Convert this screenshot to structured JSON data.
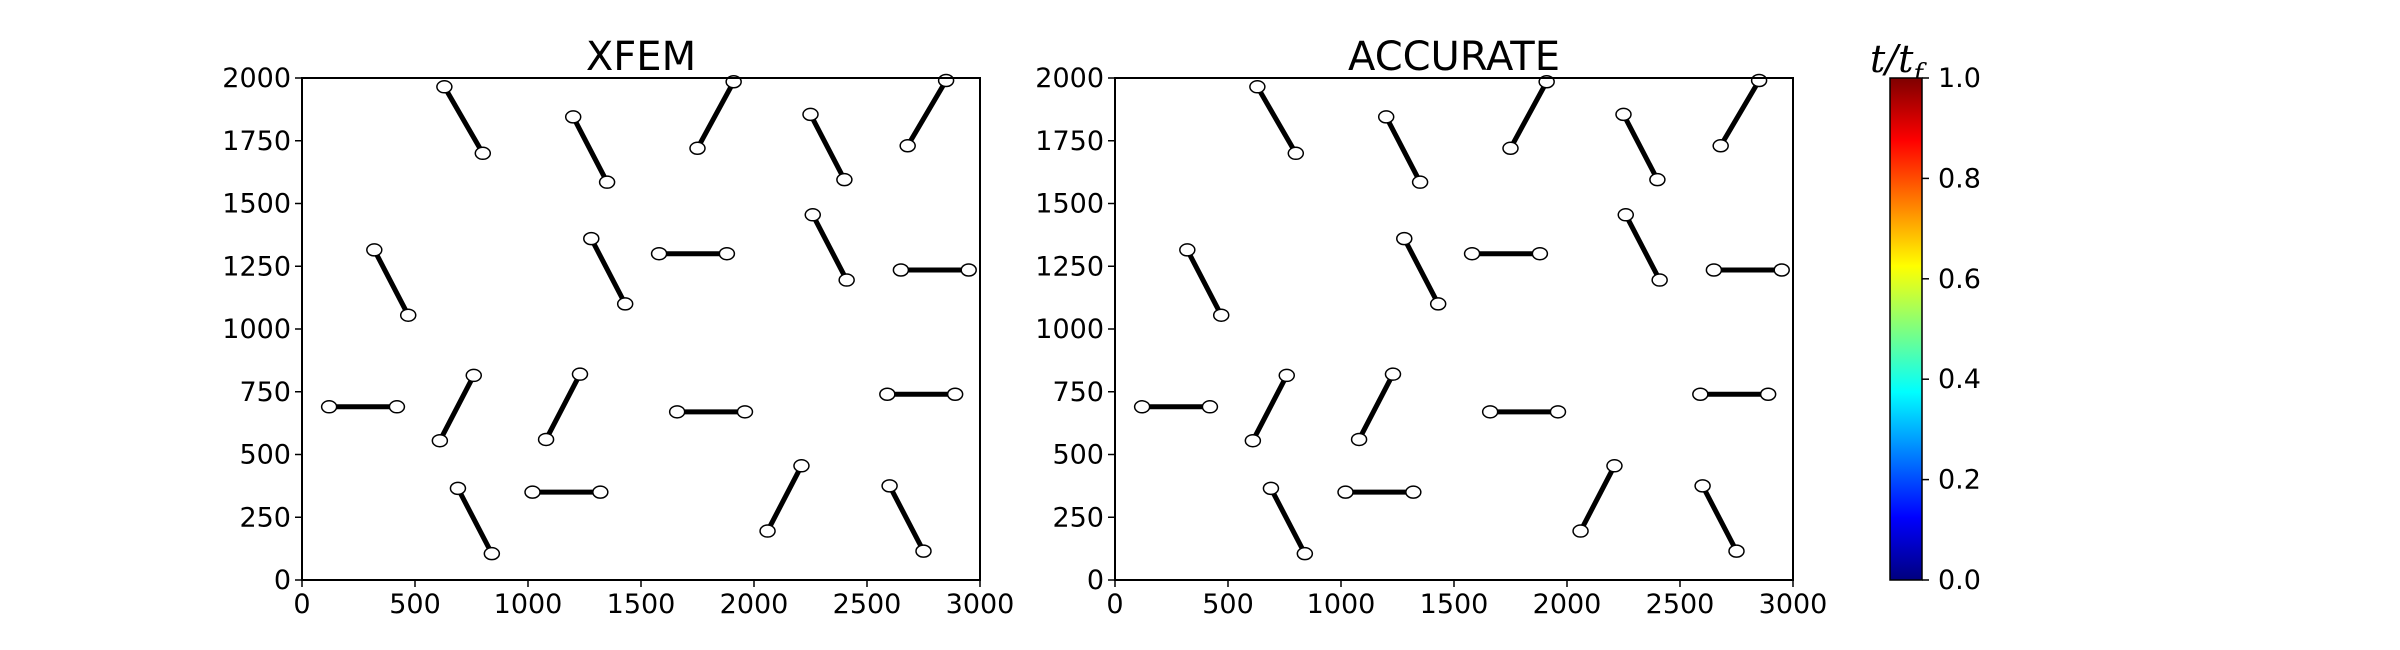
{
  "colors": {
    "segment": "#000000",
    "node_fill": "#ffffff",
    "node_stroke": "#000000",
    "colormap": [
      "#00007f",
      "#0000ff",
      "#007fff",
      "#00ffff",
      "#7fff7f",
      "#ffff00",
      "#ff7f00",
      "#ff0000",
      "#7f0000"
    ]
  },
  "chart_data": [
    {
      "type": "scatter",
      "title": "XFEM",
      "xlim": [
        0,
        3000
      ],
      "ylim": [
        0,
        2000
      ],
      "xticks": [
        "0",
        "500",
        "1000",
        "1500",
        "2000",
        "2500",
        "3000"
      ],
      "yticks": [
        "0",
        "250",
        "500",
        "750",
        "1000",
        "1250",
        "1500",
        "1750",
        "2000"
      ],
      "grid": false,
      "segments": [
        [
          [
            630,
            1965
          ],
          [
            800,
            1700
          ]
        ],
        [
          [
            1200,
            1845
          ],
          [
            1350,
            1585
          ]
        ],
        [
          [
            1750,
            1720
          ],
          [
            1910,
            1985
          ]
        ],
        [
          [
            2250,
            1855
          ],
          [
            2400,
            1595
          ]
        ],
        [
          [
            2680,
            1730
          ],
          [
            2850,
            1990
          ]
        ],
        [
          [
            320,
            1315
          ],
          [
            470,
            1055
          ]
        ],
        [
          [
            1280,
            1360
          ],
          [
            1430,
            1100
          ]
        ],
        [
          [
            1580,
            1300
          ],
          [
            1880,
            1300
          ]
        ],
        [
          [
            2260,
            1455
          ],
          [
            2410,
            1195
          ]
        ],
        [
          [
            2650,
            1235
          ],
          [
            2950,
            1235
          ]
        ],
        [
          [
            120,
            690
          ],
          [
            420,
            690
          ]
        ],
        [
          [
            610,
            555
          ],
          [
            760,
            815
          ]
        ],
        [
          [
            1080,
            560
          ],
          [
            1230,
            820
          ]
        ],
        [
          [
            1660,
            670
          ],
          [
            1960,
            670
          ]
        ],
        [
          [
            2590,
            740
          ],
          [
            2890,
            740
          ]
        ],
        [
          [
            690,
            365
          ],
          [
            840,
            105
          ]
        ],
        [
          [
            1020,
            350
          ],
          [
            1320,
            350
          ]
        ],
        [
          [
            2060,
            195
          ],
          [
            2210,
            455
          ]
        ],
        [
          [
            2600,
            375
          ],
          [
            2750,
            115
          ]
        ]
      ]
    },
    {
      "type": "scatter",
      "title": "ACCURATE",
      "xlim": [
        0,
        3000
      ],
      "ylim": [
        0,
        2000
      ],
      "xticks": [
        "0",
        "500",
        "1000",
        "1500",
        "2000",
        "2500",
        "3000"
      ],
      "yticks": [
        "0",
        "250",
        "500",
        "750",
        "1000",
        "1250",
        "1500",
        "1750",
        "2000"
      ],
      "grid": false,
      "segments": [
        [
          [
            630,
            1965
          ],
          [
            800,
            1700
          ]
        ],
        [
          [
            1200,
            1845
          ],
          [
            1350,
            1585
          ]
        ],
        [
          [
            1750,
            1720
          ],
          [
            1910,
            1985
          ]
        ],
        [
          [
            2250,
            1855
          ],
          [
            2400,
            1595
          ]
        ],
        [
          [
            2680,
            1730
          ],
          [
            2850,
            1990
          ]
        ],
        [
          [
            320,
            1315
          ],
          [
            470,
            1055
          ]
        ],
        [
          [
            1280,
            1360
          ],
          [
            1430,
            1100
          ]
        ],
        [
          [
            1580,
            1300
          ],
          [
            1880,
            1300
          ]
        ],
        [
          [
            2260,
            1455
          ],
          [
            2410,
            1195
          ]
        ],
        [
          [
            2650,
            1235
          ],
          [
            2950,
            1235
          ]
        ],
        [
          [
            120,
            690
          ],
          [
            420,
            690
          ]
        ],
        [
          [
            610,
            555
          ],
          [
            760,
            815
          ]
        ],
        [
          [
            1080,
            560
          ],
          [
            1230,
            820
          ]
        ],
        [
          [
            1660,
            670
          ],
          [
            1960,
            670
          ]
        ],
        [
          [
            2590,
            740
          ],
          [
            2890,
            740
          ]
        ],
        [
          [
            690,
            365
          ],
          [
            840,
            105
          ]
        ],
        [
          [
            1020,
            350
          ],
          [
            1320,
            350
          ]
        ],
        [
          [
            2060,
            195
          ],
          [
            2210,
            455
          ]
        ],
        [
          [
            2600,
            375
          ],
          [
            2750,
            115
          ]
        ]
      ]
    }
  ],
  "colorbar": {
    "title": "t/t_f",
    "title_main": "t/t",
    "title_sub": "f",
    "range": [
      0.0,
      1.0
    ],
    "ticks": [
      "0.0",
      "0.2",
      "0.4",
      "0.6",
      "0.8",
      "1.0"
    ]
  }
}
